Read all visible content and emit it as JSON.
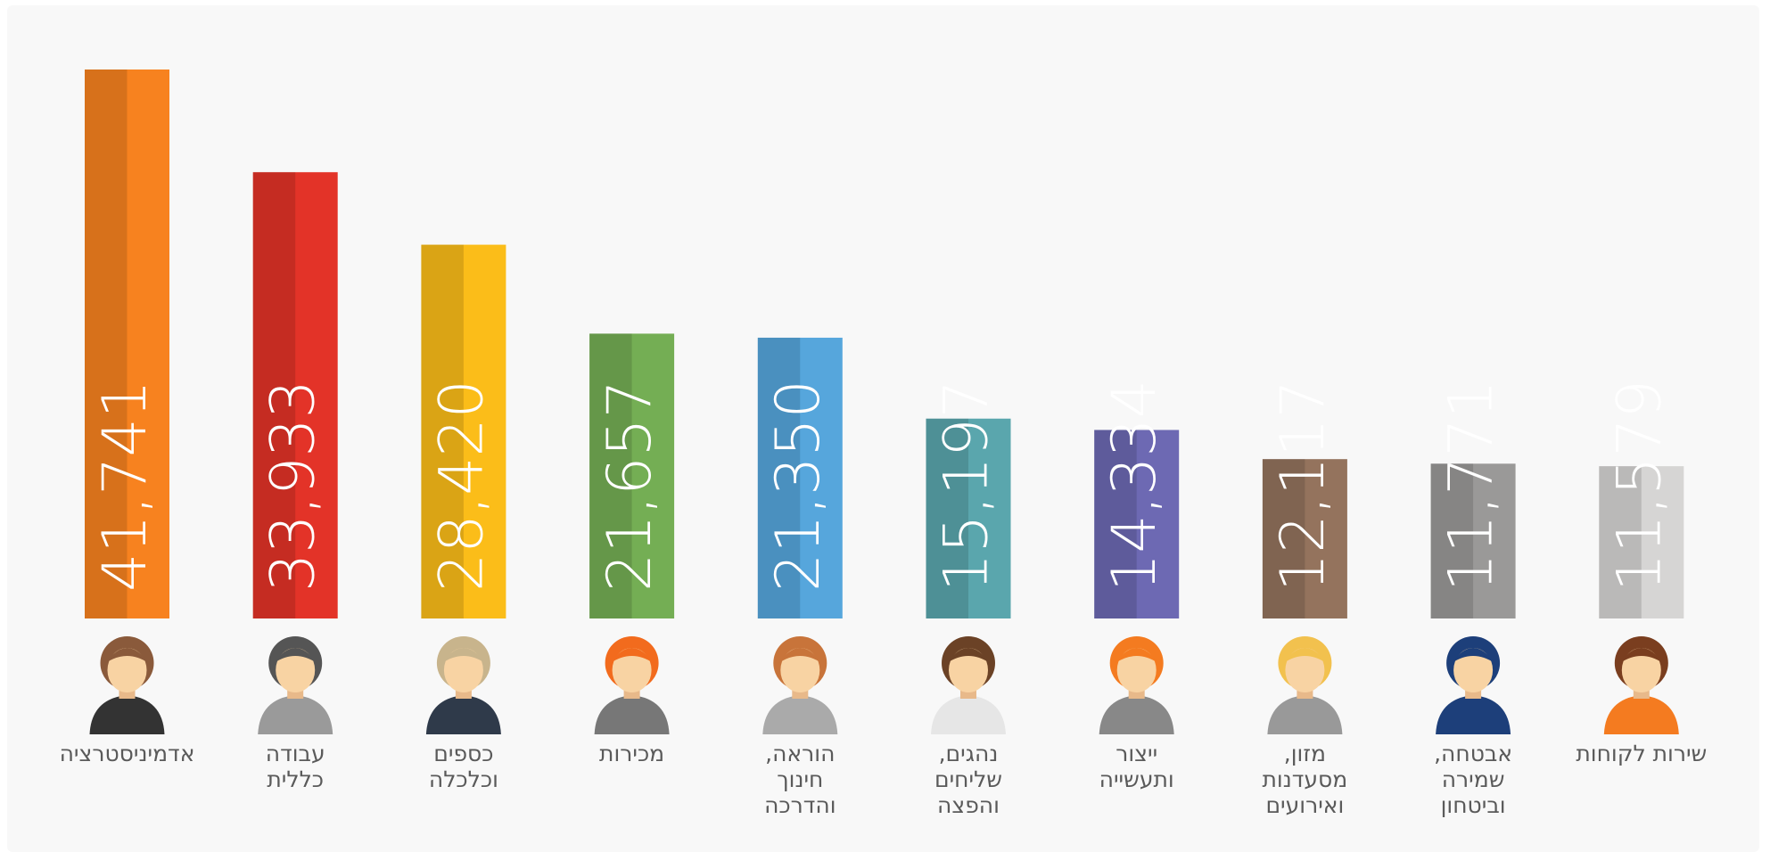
{
  "chart_data": {
    "type": "bar",
    "categories": [
      "אדמיניסטרציה",
      "עבודה\nכללית",
      "כספים\nוכלכלה",
      "מכירות",
      "הוראה,\nחינוך\nוהדרכה",
      "נהגים,\nשליחים\nוהפצה",
      "ייצור\nותעשייה",
      "מזון,\nמסעדנות\nואירועים",
      "אבטחה,\nשמירה\nוביטחון",
      "שירות לקוחות"
    ],
    "values": [
      41741,
      33933,
      28420,
      21657,
      21350,
      15197,
      14334,
      12117,
      11771,
      11579
    ],
    "value_labels": [
      "41,741",
      "33,933",
      "28,420",
      "21,657",
      "21,350",
      "15,197",
      "14,334",
      "12,117",
      "11,771",
      "11,579"
    ],
    "colors": [
      "#f7821f",
      "#e33328",
      "#fbbd19",
      "#74ae54",
      "#56a6dc",
      "#5aa6ad",
      "#6d69b3",
      "#94735d",
      "#9a9998",
      "#d6d5d4"
    ]
  }
}
